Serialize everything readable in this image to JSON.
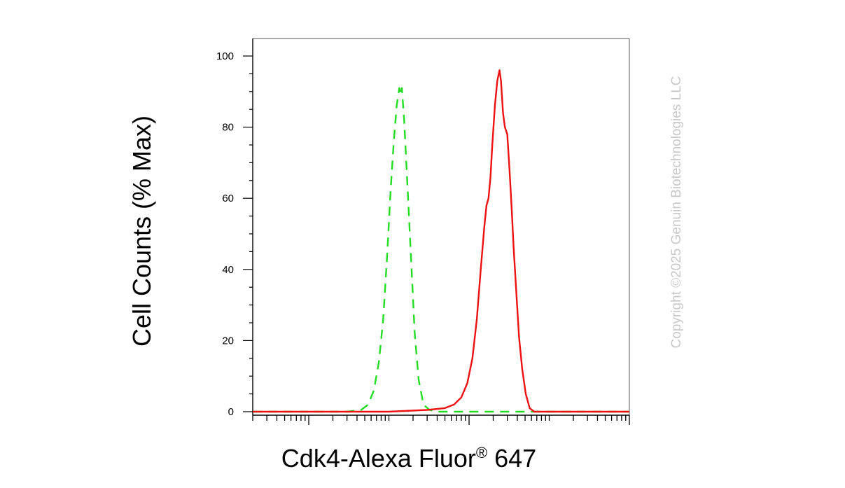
{
  "chart_data": {
    "type": "line",
    "title": "",
    "xlabel_main": "Cdk4-Alexa Fluor",
    "xlabel_reg": "®",
    "xlabel_tail": " 647",
    "ylabel": "Cell Counts (% Max)",
    "x_scale": "log",
    "xlim": [
      20,
      1000000
    ],
    "ylim": [
      0,
      105
    ],
    "y_ticks": [
      0,
      20,
      40,
      60,
      80,
      100
    ],
    "x_major_ticks": [
      100,
      10000,
      1000000
    ],
    "x_tick_labels_shown": false,
    "series": [
      {
        "color": "#22dd22",
        "style": "dashed",
        "points": [
          [
            20,
            0
          ],
          [
            150,
            0
          ],
          [
            300,
            0
          ],
          [
            450,
            0.5
          ],
          [
            550,
            2
          ],
          [
            650,
            6
          ],
          [
            750,
            14
          ],
          [
            850,
            26
          ],
          [
            950,
            44
          ],
          [
            1050,
            62
          ],
          [
            1150,
            76
          ],
          [
            1250,
            86
          ],
          [
            1350,
            91
          ],
          [
            1400,
            89
          ],
          [
            1450,
            91
          ],
          [
            1550,
            82
          ],
          [
            1700,
            64
          ],
          [
            1900,
            42
          ],
          [
            2100,
            22
          ],
          [
            2350,
            9
          ],
          [
            2700,
            2
          ],
          [
            3200,
            0.5
          ],
          [
            4000,
            0
          ],
          [
            10000,
            0
          ],
          [
            1000000,
            0
          ]
        ]
      },
      {
        "color": "#ee1111",
        "style": "solid",
        "points": [
          [
            20,
            0
          ],
          [
            1000,
            0
          ],
          [
            3000,
            0.5
          ],
          [
            5000,
            1
          ],
          [
            6500,
            2
          ],
          [
            8000,
            4
          ],
          [
            9500,
            8
          ],
          [
            11000,
            15
          ],
          [
            12500,
            26
          ],
          [
            14000,
            40
          ],
          [
            15500,
            52
          ],
          [
            16500,
            58
          ],
          [
            17500,
            60
          ],
          [
            18500,
            66
          ],
          [
            19500,
            75
          ],
          [
            21000,
            86
          ],
          [
            22500,
            93
          ],
          [
            24000,
            96
          ],
          [
            25000,
            93
          ],
          [
            26500,
            84
          ],
          [
            28000,
            80
          ],
          [
            30000,
            78
          ],
          [
            32000,
            68
          ],
          [
            34000,
            57
          ],
          [
            36000,
            46
          ],
          [
            39000,
            33
          ],
          [
            42000,
            21
          ],
          [
            46000,
            12
          ],
          [
            51000,
            5
          ],
          [
            57000,
            1
          ],
          [
            65000,
            0
          ],
          [
            100000,
            0
          ],
          [
            1000000,
            0
          ]
        ]
      }
    ]
  },
  "watermark": "Copyright ©2025 Genuin Biotechnologies LLC"
}
